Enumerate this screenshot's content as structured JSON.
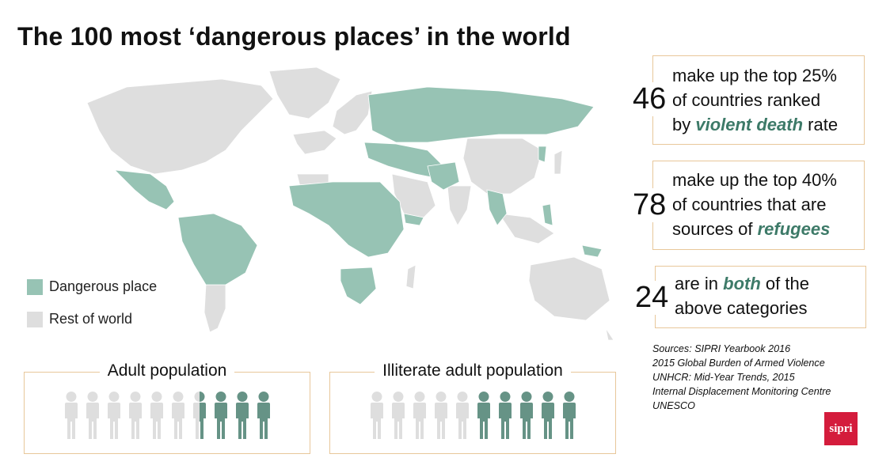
{
  "title": "The 100 most ‘dangerous places’ in the world",
  "colors": {
    "dangerous": "#97c3b4",
    "rest": "#dedede",
    "accent": "#3d7a68",
    "border": "#e8c79a",
    "logo": "#d41c3c"
  },
  "legend": [
    {
      "label": "Dangerous place",
      "color": "#97c3b4"
    },
    {
      "label": "Rest of world",
      "color": "#dedede"
    }
  ],
  "stats": [
    {
      "number": "46",
      "line1": "make up the top 25%",
      "line2": "of countries ranked",
      "line3_pre": "by ",
      "line3_em": "violent death",
      "line3_post": " rate"
    },
    {
      "number": "78",
      "line1": "make up the top 40%",
      "line2": "of countries that are",
      "line3_pre": "sources of ",
      "line3_em": "refugees",
      "line3_post": ""
    },
    {
      "number": "24",
      "line1_pre": "are in ",
      "line1_em": "both",
      "line1_post": " of the",
      "line2": "above categories"
    }
  ],
  "sources": [
    "Sources: SIPRI Yearbook 2016",
    "2015 Global Burden of Armed Violence",
    "UNHCR: Mid-Year Trends, 2015",
    "Internal Displacement Monitoring Centre",
    "UNESCO"
  ],
  "logo_text": "sipri",
  "panels": [
    {
      "title": "Adult population",
      "total": 10,
      "highlighted": 3.5
    },
    {
      "title": "Illiterate adult population",
      "total": 10,
      "highlighted": 5
    }
  ]
}
